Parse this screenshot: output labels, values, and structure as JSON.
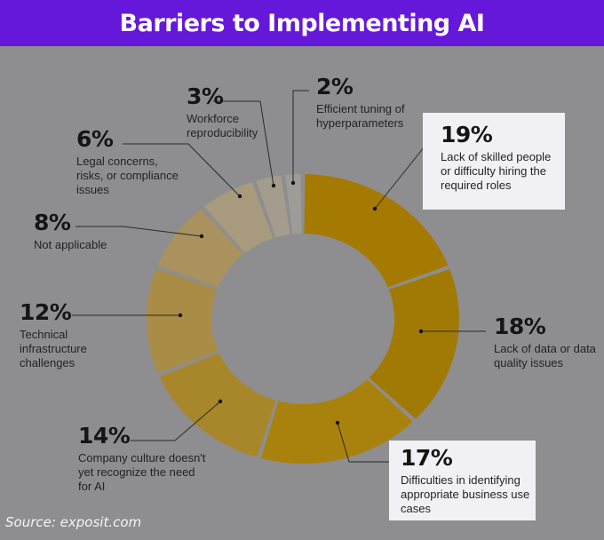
{
  "header": {
    "title": "Barriers to Implementing AI"
  },
  "source": "Source: exposit.com",
  "colors": {
    "header_bg": "#6517da",
    "background": "#8e8e90",
    "highlight_box": "#f1f1f5"
  },
  "chart_data": {
    "type": "pie",
    "variant": "donut",
    "title": "Barriers to Implementing AI",
    "unit": "%",
    "order": "clockwise from 12 o'clock",
    "categories": [
      "Lack of skilled people or difficulty hiring the required roles",
      "Lack of data or data quality issues",
      "Difficulties in identifying appropriate business use cases",
      "Company culture doesn't yet recognize the need for AI",
      "Technical infrastructure challenges",
      "Not applicable",
      "Legal concerns, risks, or compliance issues",
      "Workforce reproducibility",
      "Efficient tuning of hyperparameters"
    ],
    "values": [
      19,
      18,
      17,
      14,
      12,
      8,
      6,
      3,
      2
    ],
    "slices": [
      {
        "pct_label": "19%",
        "value": 19,
        "label": "Lack of skilled people or difficulty hiring the required roles",
        "color": "#a57a00",
        "highlighted": true
      },
      {
        "pct_label": "18%",
        "value": 18,
        "label": "Lack of data or data quality issues",
        "color": "#a17a06",
        "highlighted": false
      },
      {
        "pct_label": "17%",
        "value": 17,
        "label": "Difficulties in identifying appropriate business use cases",
        "color": "#a8820c",
        "highlighted": true
      },
      {
        "pct_label": "14%",
        "value": 14,
        "label": "Company culture doesn't yet recognize the need for AI",
        "color": "#a8862a",
        "highlighted": false
      },
      {
        "pct_label": "12%",
        "value": 12,
        "label": "Technical infrastructure challenges",
        "color": "#a98c45",
        "highlighted": false
      },
      {
        "pct_label": "8%",
        "value": 8,
        "label": "Not applicable",
        "color": "#a9925e",
        "highlighted": false
      },
      {
        "pct_label": "6%",
        "value": 6,
        "label": "Legal concerns, risks, or compliance issues",
        "color": "#a89a7c",
        "highlighted": false
      },
      {
        "pct_label": "3%",
        "value": 3,
        "label": "Workforce reproducibility",
        "color": "#a49d8e",
        "highlighted": false
      },
      {
        "pct_label": "2%",
        "value": 2,
        "label": "Efficient tuning of hyperparameters",
        "color": "#9e9c97",
        "highlighted": false
      }
    ]
  }
}
